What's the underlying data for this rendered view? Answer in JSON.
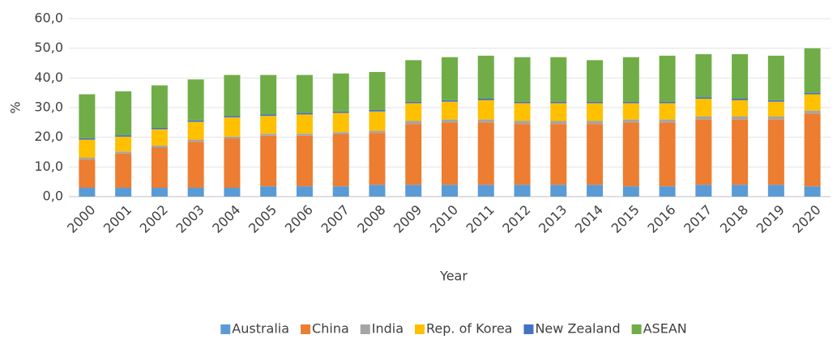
{
  "chart_data": {
    "type": "stacked-bar",
    "x_label": "Year",
    "y_label": "%",
    "categories": [
      "2000",
      "2001",
      "2002",
      "2003",
      "2004",
      "2005",
      "2006",
      "2007",
      "2008",
      "2009",
      "2010",
      "2011",
      "2012",
      "2013",
      "2014",
      "2015",
      "2016",
      "2017",
      "2018",
      "2019",
      "2020"
    ],
    "series": [
      {
        "name": "Australia",
        "color": "#5b9bd5",
        "values": [
          3,
          3,
          3,
          3,
          3,
          3.5,
          3.5,
          3.5,
          4,
          4,
          4,
          4,
          4,
          4,
          4,
          3.5,
          3.5,
          4,
          4,
          4,
          3.5
        ]
      },
      {
        "name": "China",
        "color": "#ed7d31",
        "values": [
          9.5,
          11.5,
          13.5,
          15.5,
          16.5,
          17,
          17,
          17.5,
          17.5,
          20.5,
          21,
          21,
          20.5,
          20.5,
          20.5,
          21.5,
          21.5,
          22,
          22,
          22,
          24.5
        ]
      },
      {
        "name": "India",
        "color": "#a5a5a5",
        "values": [
          0.7,
          0.7,
          0.7,
          0.7,
          0.7,
          0.7,
          0.7,
          0.7,
          0.7,
          1,
          1,
          1,
          1,
          1,
          1,
          1,
          1,
          1,
          1,
          1,
          1
        ]
      },
      {
        "name": "Rep. of Korea",
        "color": "#ffc000",
        "values": [
          6,
          5,
          5.5,
          6,
          6.5,
          6,
          6.5,
          6.5,
          6.5,
          6,
          6,
          6.5,
          6,
          6,
          6,
          5.5,
          5.5,
          6,
          5.5,
          5,
          5.5
        ]
      },
      {
        "name": "New Zealand",
        "color": "#4472c4",
        "values": [
          0.5,
          0.5,
          0.5,
          0.5,
          0.5,
          0.5,
          0.5,
          0.5,
          0.5,
          0.5,
          0.5,
          0.5,
          0.5,
          0.5,
          0.5,
          0.5,
          0.5,
          0.5,
          0.5,
          0.5,
          0.5
        ]
      },
      {
        "name": "ASEAN",
        "color": "#70ad47",
        "values": [
          14.8,
          14.8,
          14.3,
          13.8,
          13.8,
          13.3,
          12.8,
          12.8,
          12.8,
          14,
          14.5,
          14.5,
          15,
          15,
          14,
          15,
          15.5,
          14.5,
          15,
          15,
          15
        ]
      }
    ],
    "ylim": [
      0,
      60
    ],
    "yticks": [
      {
        "value": 0,
        "label": "0,0"
      },
      {
        "value": 10,
        "label": "10,0"
      },
      {
        "value": 20,
        "label": "20,0"
      },
      {
        "value": 30,
        "label": "30,0"
      },
      {
        "value": 40,
        "label": "40,0"
      },
      {
        "value": 50,
        "label": "50,0"
      },
      {
        "value": 60,
        "label": "60,0"
      }
    ],
    "grid": true,
    "legend": "bottom"
  }
}
